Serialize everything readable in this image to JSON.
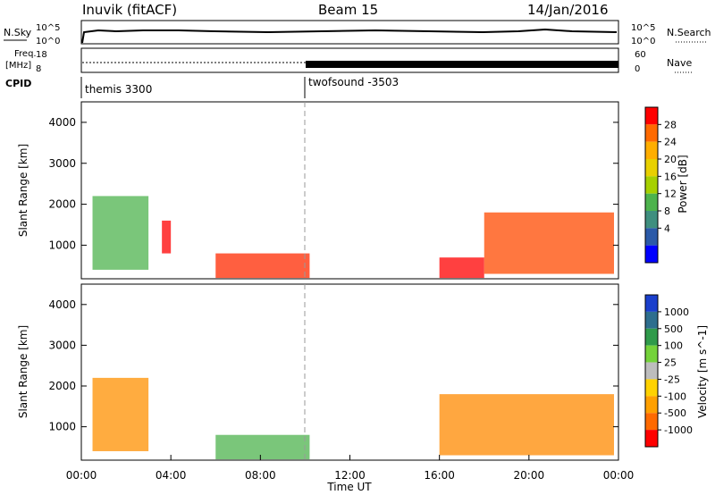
{
  "header": {
    "station": "Inuvik (fitACF)",
    "beam": "Beam 15",
    "date": "14/Jan/2016"
  },
  "noise_panel": {
    "left_label": "N.Sky",
    "right_label": "N.Search",
    "left_ticks": [
      "10^5",
      "10^0"
    ],
    "right_ticks": [
      "10^5",
      "10^0"
    ]
  },
  "freq_panel": {
    "left_label_1": "Freq.",
    "left_label_2": "[MHz]",
    "right_label": "Nave",
    "left_ticks": [
      "18",
      "8"
    ],
    "right_ticks": [
      "60",
      "0"
    ]
  },
  "cpid": {
    "label": "CPID",
    "modes": [
      {
        "name": "themis 3300",
        "start_hour": 0
      },
      {
        "name": "twofsound -3503",
        "start_hour": 10
      }
    ]
  },
  "x_axis": {
    "label": "Time UT",
    "ticks": [
      "00:00",
      "04:00",
      "08:00",
      "12:00",
      "16:00",
      "20:00",
      "00:00"
    ]
  },
  "chart_data": [
    {
      "type": "heatmap",
      "title": "",
      "xlabel": "Time UT",
      "ylabel": "Slant Range [km]",
      "xlim": [
        0,
        24
      ],
      "ylim": [
        180,
        4500
      ],
      "yticks": [
        1000,
        2000,
        3000,
        4000
      ],
      "colorbar_label": "Power [dB]",
      "colorbar_ticks": [
        "28",
        "24",
        "20",
        "16",
        "12",
        "8",
        "4"
      ],
      "colorbar_colors": [
        "#ff0000",
        "#ff6a00",
        "#ffae00",
        "#e8d000",
        "#a6d000",
        "#4db34d",
        "#3f8f7f",
        "#2b5aa8",
        "#0000ff"
      ],
      "patches": [
        {
          "t0": 0.5,
          "t1": 3.0,
          "r0": 400,
          "r1": 2200,
          "color": "#4db34d"
        },
        {
          "t0": 3.6,
          "t1": 4.0,
          "r0": 800,
          "r1": 1600,
          "color": "#ff0000"
        },
        {
          "t0": 6.0,
          "t1": 10.2,
          "r0": 200,
          "r1": 800,
          "color": "#ff2a00"
        },
        {
          "t0": 16.0,
          "t1": 18.0,
          "r0": 200,
          "r1": 700,
          "color": "#ff0000"
        },
        {
          "t0": 18.0,
          "t1": 23.8,
          "r0": 300,
          "r1": 1800,
          "color": "#ff4a00"
        }
      ]
    },
    {
      "type": "heatmap",
      "title": "",
      "xlabel": "Time UT",
      "ylabel": "Slant Range [km]",
      "xlim": [
        0,
        24
      ],
      "ylim": [
        180,
        4500
      ],
      "yticks": [
        1000,
        2000,
        3000,
        4000
      ],
      "colorbar_label": "Velocity [m s^-1]",
      "colorbar_ticks": [
        "1000",
        "500",
        "100",
        "25",
        "-25",
        "-100",
        "-500",
        "-1000"
      ],
      "colorbar_colors": [
        "#1a3fcc",
        "#2e6e8e",
        "#2f9a4a",
        "#74d23a",
        "#bdbdbd",
        "#ffd200",
        "#ffa000",
        "#ff6a00",
        "#ff0000"
      ],
      "patches": [
        {
          "t0": 0.5,
          "t1": 3.0,
          "r0": 400,
          "r1": 2200,
          "color": "#ff9000"
        },
        {
          "t0": 6.0,
          "t1": 10.2,
          "r0": 200,
          "r1": 800,
          "color": "#4db34d"
        },
        {
          "t0": 16.0,
          "t1": 23.8,
          "r0": 300,
          "r1": 1800,
          "color": "#ff8a00"
        }
      ]
    }
  ]
}
